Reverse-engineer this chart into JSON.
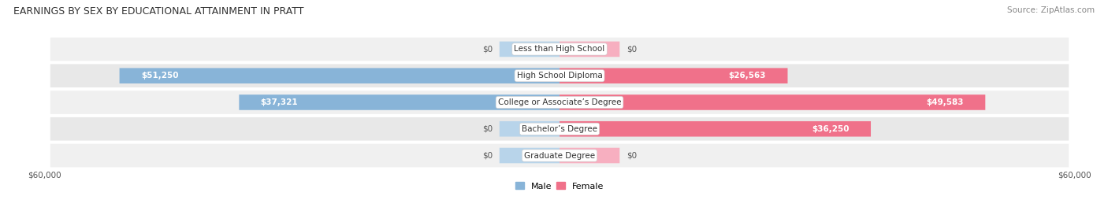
{
  "title": "EARNINGS BY SEX BY EDUCATIONAL ATTAINMENT IN PRATT",
  "source": "Source: ZipAtlas.com",
  "categories": [
    "Less than High School",
    "High School Diploma",
    "College or Associate’s Degree",
    "Bachelor’s Degree",
    "Graduate Degree"
  ],
  "male_values": [
    0,
    51250,
    37321,
    0,
    0
  ],
  "female_values": [
    0,
    26563,
    49583,
    36250,
    0
  ],
  "male_color": "#88b4d8",
  "female_color": "#f0718a",
  "male_color_light": "#b8d4ea",
  "female_color_light": "#f7afc0",
  "male_label": "Male",
  "female_label": "Female",
  "max_val": 60000,
  "xlabel_left": "$60,000",
  "xlabel_right": "$60,000",
  "bar_height": 0.58,
  "row_bg_colors": [
    "#f0f0f0",
    "#e8e8e8",
    "#f0f0f0",
    "#e8e8e8",
    "#f0f0f0"
  ],
  "title_fontsize": 9,
  "source_fontsize": 7.5,
  "label_fontsize": 7.5,
  "value_fontsize": 7.5,
  "tick_fontsize": 7.5,
  "legend_fontsize": 8,
  "stub_val": 7000
}
